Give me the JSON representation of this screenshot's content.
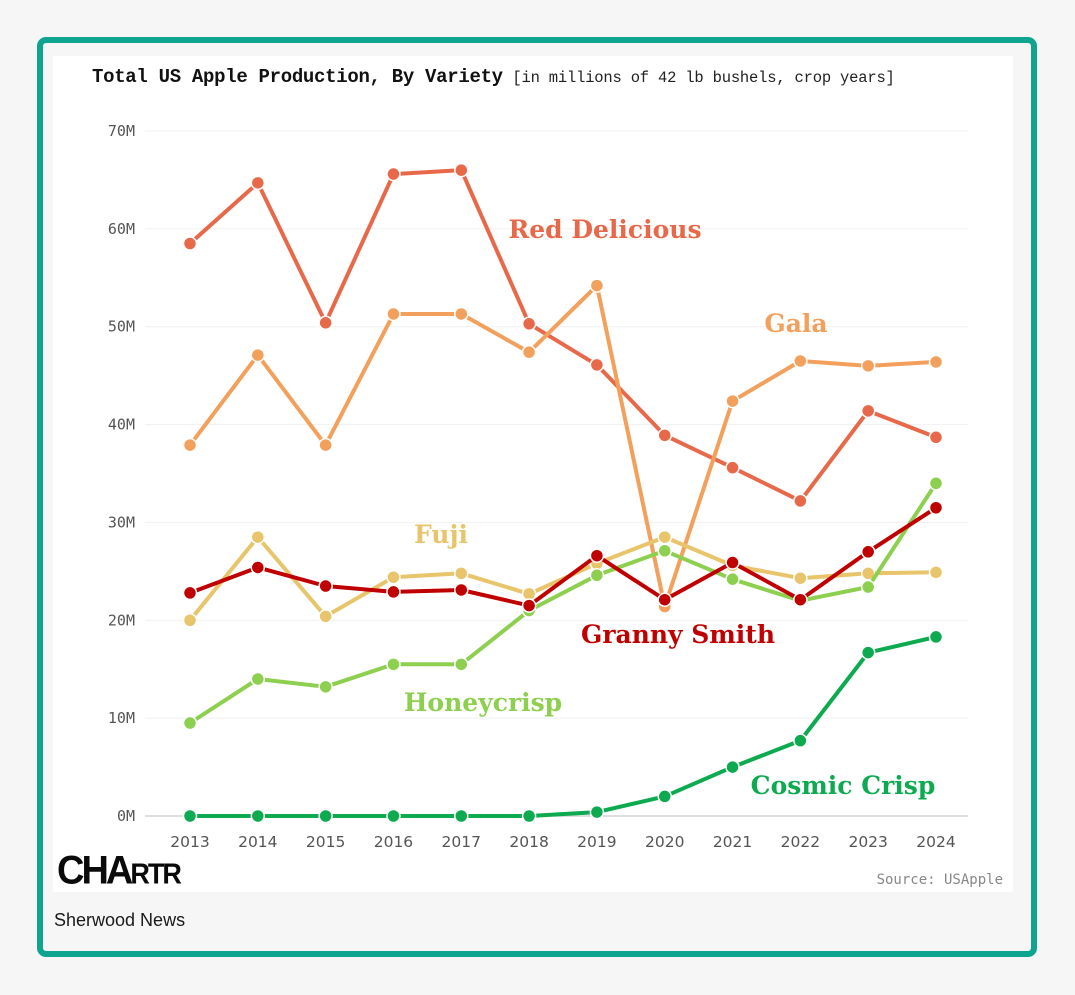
{
  "publisher": "Sherwood News",
  "logo": {
    "big": "CHA",
    "small": "RTR"
  },
  "source": "Source: USApple",
  "colors": {
    "frame": "#0fa490",
    "grid": "#f0f0f0",
    "axis": "#d4d4d4"
  },
  "chart_data": {
    "type": "line",
    "title": "Total US Apple Production, By Variety",
    "subtitle": "[in millions of 42 lb bushels, crop years]",
    "xlabel": "",
    "ylabel": "",
    "x": [
      "2013",
      "2014",
      "2015",
      "2016",
      "2017",
      "2018",
      "2019",
      "2020",
      "2021",
      "2022",
      "2023",
      "2024"
    ],
    "ylim": [
      0,
      70
    ],
    "yticks": [
      0,
      10,
      20,
      30,
      40,
      50,
      60,
      70
    ],
    "ytick_labels": [
      "0M",
      "10M",
      "20M",
      "30M",
      "40M",
      "50M",
      "60M",
      "70M"
    ],
    "grid": true,
    "legend": "inline labels",
    "series": [
      {
        "name": "Red Delicious",
        "color": "#e8694a",
        "values": [
          58.5,
          64.7,
          50.4,
          65.6,
          66.0,
          50.3,
          46.1,
          38.9,
          35.6,
          32.2,
          41.4,
          38.7
        ]
      },
      {
        "name": "Gala",
        "color": "#f2a05c",
        "values": [
          37.9,
          47.1,
          37.9,
          51.3,
          51.3,
          47.4,
          54.2,
          21.4,
          42.4,
          46.5,
          46.0,
          46.4
        ]
      },
      {
        "name": "Fuji",
        "color": "#e8c46a",
        "values": [
          20.0,
          28.5,
          20.4,
          24.4,
          24.8,
          22.7,
          25.8,
          28.5,
          25.6,
          24.3,
          24.8,
          24.9
        ]
      },
      {
        "name": "Honeycrisp",
        "color": "#8dcf4f",
        "values": [
          9.5,
          14.0,
          13.2,
          15.5,
          15.5,
          21.0,
          24.6,
          27.1,
          24.2,
          22.0,
          23.4,
          34.0
        ]
      },
      {
        "name": "Granny Smith",
        "color": "#c00000",
        "values": [
          22.8,
          25.4,
          23.5,
          22.9,
          23.1,
          21.5,
          26.6,
          22.1,
          25.9,
          22.1,
          27.0,
          31.5
        ]
      },
      {
        "name": "Cosmic Crisp",
        "color": "#0daa50",
        "values": [
          0,
          0,
          0,
          0,
          0,
          0,
          0.4,
          2.0,
          5.0,
          7.7,
          16.7,
          18.3
        ]
      }
    ]
  }
}
